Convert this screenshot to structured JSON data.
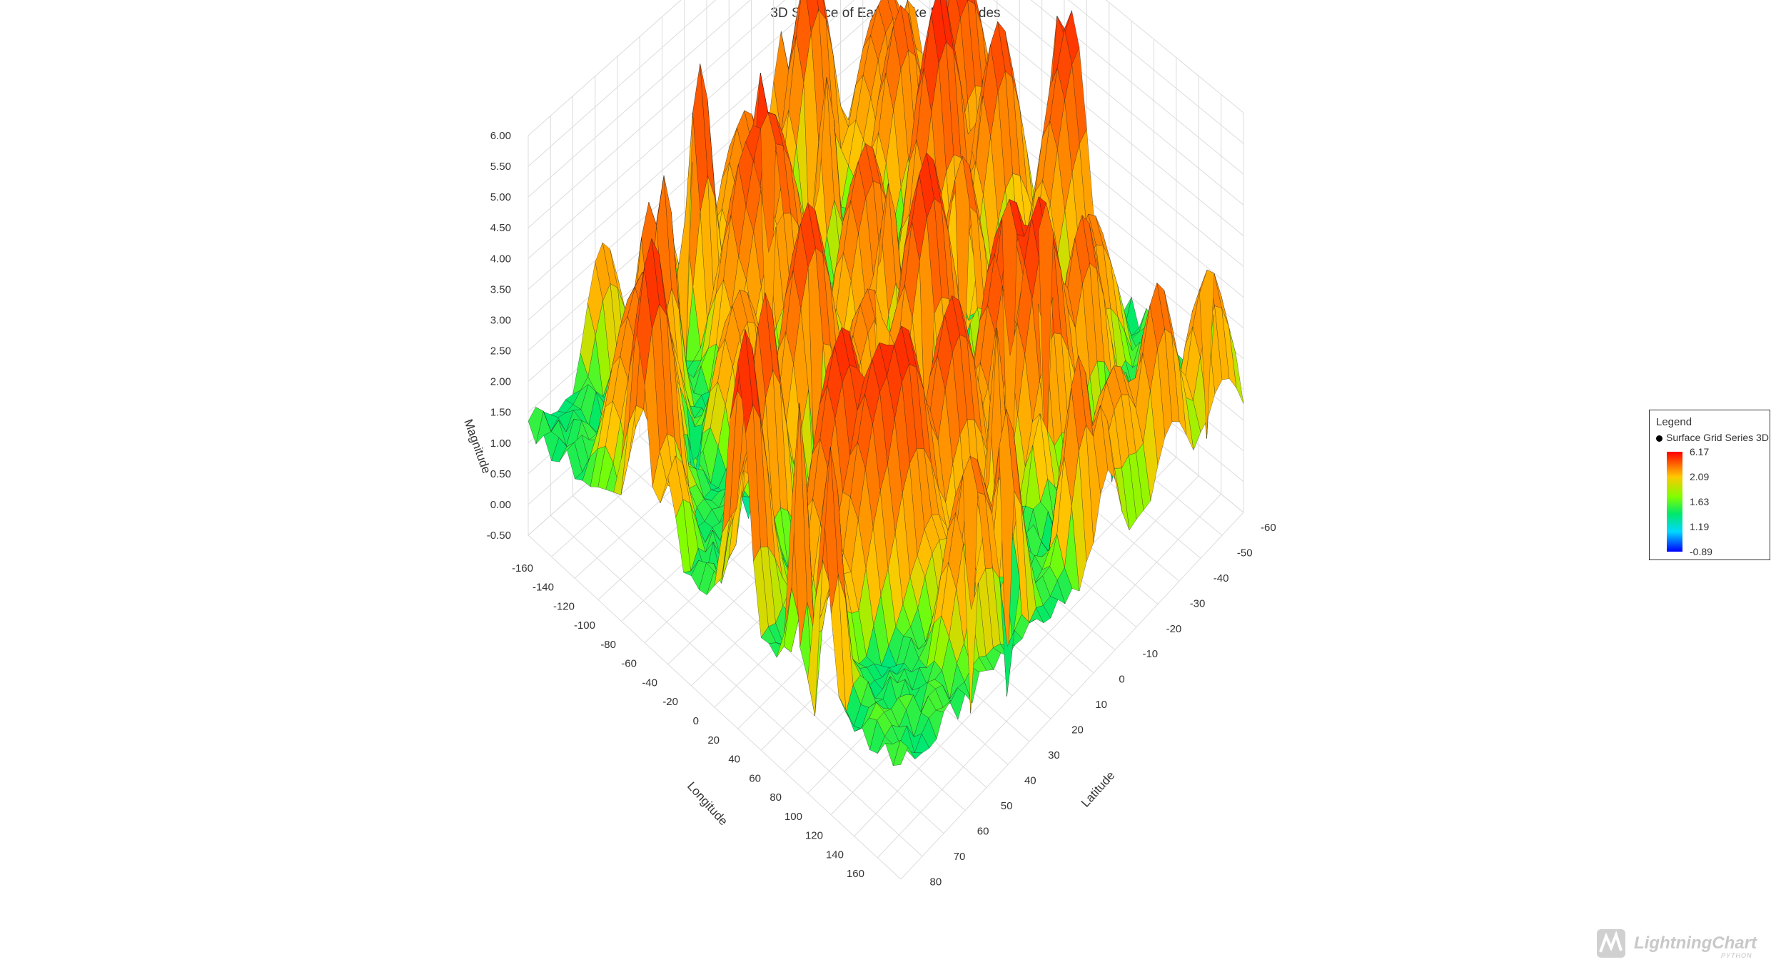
{
  "chart_data": {
    "type": "surface3d",
    "title": "3D Surface of Earthquake Magnitudes",
    "xlabel": "Longitude",
    "ylabel": "Magnitude",
    "zlabel": "Latitude",
    "x_ticks": [
      "-160",
      "-140",
      "-120",
      "-100",
      "-80",
      "-60",
      "-40",
      "-20",
      "0",
      "20",
      "40",
      "60",
      "80",
      "100",
      "120",
      "140",
      "160"
    ],
    "y_ticks": [
      "-0.50",
      "0.00",
      "0.50",
      "1.00",
      "1.50",
      "2.00",
      "2.50",
      "3.00",
      "3.50",
      "4.00",
      "4.50",
      "5.00",
      "5.50",
      "6.00"
    ],
    "z_ticks": [
      "-60",
      "-50",
      "-40",
      "-30",
      "-20",
      "-10",
      "0",
      "10",
      "20",
      "30",
      "40",
      "50",
      "60",
      "70",
      "80"
    ],
    "xlim": [
      -180,
      180
    ],
    "ylim": [
      -0.5,
      6.0
    ],
    "zlim": [
      -60,
      85
    ],
    "grid": true,
    "colormap": [
      "#0000ff",
      "#00d8ff",
      "#00e86a",
      "#80ff00",
      "#ffc800",
      "#ff0000"
    ],
    "legend": {
      "title": "Legend",
      "series_name": "Surface Grid Series 3D",
      "steps": [
        "6.17",
        "2.09",
        "1.63",
        "1.19",
        "-0.89"
      ],
      "position": "right"
    }
  },
  "branding": {
    "name": "LightningChart",
    "sub": "PYTHON"
  }
}
